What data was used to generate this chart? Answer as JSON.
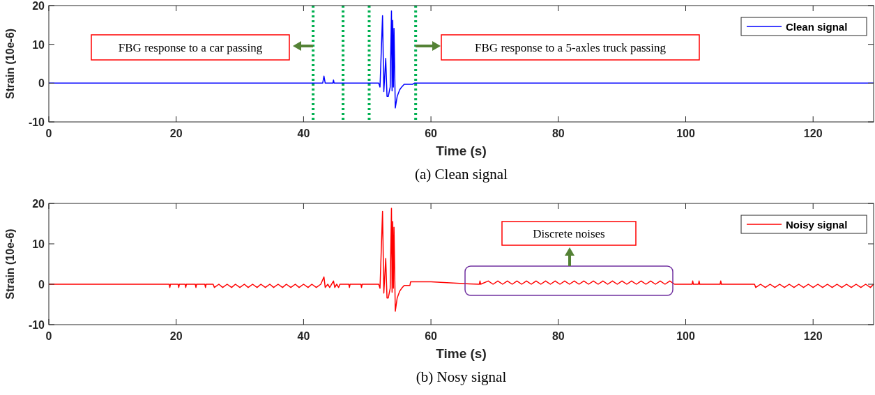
{
  "chart_data": [
    {
      "type": "line",
      "title": "(a) Clean signal",
      "xlabel": "Time (s)",
      "ylabel": "Strain (10e-6)",
      "xlim": [
        0,
        129.5
      ],
      "xticks": [
        0,
        20,
        40,
        60,
        80,
        100,
        120
      ],
      "ylim": [
        -10,
        20
      ],
      "yticks": [
        -10,
        0,
        10,
        20
      ],
      "grid": false,
      "legend": "top right",
      "line_style": "solid",
      "marker": "none",
      "series": [
        {
          "name": "Clean signal",
          "color": "#0000ff",
          "x": [
            0,
            43,
            43.2,
            43.4,
            44.6,
            44.7,
            44.8,
            51.8,
            52,
            52.4,
            52.6,
            52.9,
            53.1,
            53.3,
            53.6,
            53.8,
            53.9,
            54,
            54.1,
            54.2,
            54.4,
            54.7,
            55.1,
            55.4,
            55.8,
            57.1,
            57.4,
            129.5
          ],
          "values": [
            0,
            0,
            1.8,
            0,
            0,
            0.8,
            0,
            0,
            -1,
            17.4,
            -2.2,
            6.4,
            -3.4,
            -3.4,
            -1,
            18.6,
            -2,
            16.2,
            -1,
            14.1,
            -6.4,
            -3.4,
            -1.7,
            -1,
            -0.3,
            -0.3,
            0,
            0
          ]
        }
      ],
      "ref_lines": [
        {
          "axis": "x",
          "value": 41.5,
          "color": "#00b050",
          "line_style": "dotted"
        },
        {
          "axis": "x",
          "value": 46.2,
          "color": "#00b050",
          "line_style": "dotted"
        },
        {
          "axis": "x",
          "value": 50.3,
          "color": "#00b050",
          "line_style": "dotted"
        },
        {
          "axis": "x",
          "value": 57.6,
          "color": "#00b050",
          "line_style": "dotted"
        }
      ],
      "annotations": [
        "FBG response to a car passing",
        "FBG response to a 5-axles truck passing"
      ]
    },
    {
      "type": "line",
      "title": "(b) Nosy signal",
      "xlabel": "Time (s)",
      "ylabel": "Strain (10e-6)",
      "xlim": [
        0,
        129.5
      ],
      "xticks": [
        0,
        20,
        40,
        60,
        80,
        100,
        120
      ],
      "ylim": [
        -10,
        20
      ],
      "yticks": [
        -10,
        0,
        10,
        20
      ],
      "grid": false,
      "legend": "top right",
      "line_style": "solid",
      "marker": "none",
      "series": [
        {
          "name": "Noisy signal",
          "color": "#ff0000",
          "x": [
            0,
            18.9,
            19,
            19.1,
            20.3,
            20.4,
            20.5,
            21.4,
            21.5,
            21.6,
            23,
            23.1,
            23.2,
            24.5,
            24.6,
            24.7,
            25.8,
            26,
            26.7,
            27.3,
            28,
            28.7,
            29.3,
            30,
            30.7,
            31.3,
            32,
            32.7,
            33.3,
            34,
            34.7,
            35.3,
            36,
            36.7,
            37.3,
            38,
            38.7,
            39.3,
            40,
            40.7,
            41.3,
            42,
            42.7,
            43.2,
            43.4,
            43.8,
            44.1,
            44.4,
            44.7,
            44.9,
            45.2,
            45.5,
            45.7,
            47.1,
            47.2,
            47.3,
            49,
            49.1,
            49.2,
            51.8,
            52,
            52.4,
            52.6,
            52.9,
            53.1,
            53.3,
            53.6,
            53.8,
            53.9,
            54,
            54.1,
            54.2,
            54.4,
            54.7,
            55.1,
            55.4,
            55.8,
            56.7,
            56.8,
            60,
            66,
            67.6,
            67.7,
            67.8,
            69,
            69.75,
            70.5,
            71.25,
            72,
            72.75,
            73.5,
            74.25,
            75,
            75.75,
            76.5,
            77.25,
            78,
            78.75,
            79.5,
            80.25,
            81,
            81.75,
            82.5,
            83.25,
            84,
            84.75,
            85.5,
            86.25,
            87,
            87.75,
            88.5,
            89.25,
            90,
            90.75,
            91.5,
            92.25,
            93,
            93.75,
            94.5,
            95.25,
            96,
            96.75,
            97.5,
            98.25,
            99.5,
            101,
            101.1,
            101.2,
            102,
            102.1,
            102.2,
            105.4,
            105.5,
            105.6,
            110.8,
            111,
            111.75,
            112.5,
            113.25,
            114,
            114.75,
            115.5,
            116.25,
            117,
            117.75,
            118.5,
            119.25,
            120,
            120.75,
            121.5,
            122.25,
            123,
            123.75,
            124.5,
            125.25,
            126,
            126.75,
            127.5,
            128.25,
            129,
            129.5
          ],
          "values": [
            0,
            0,
            -0.8,
            0,
            0,
            -0.8,
            0,
            0,
            -0.8,
            0,
            0,
            -0.8,
            0,
            0,
            -0.8,
            0,
            0,
            -0.8,
            0,
            -0.8,
            0,
            -0.8,
            0,
            -0.8,
            0,
            -0.8,
            0,
            -0.8,
            0,
            -0.8,
            0,
            -0.8,
            0,
            -0.8,
            0,
            -0.8,
            0,
            -0.8,
            0,
            -0.8,
            0,
            -0.8,
            0,
            1.8,
            -0.8,
            0,
            -0.8,
            0,
            0.8,
            -0.8,
            0,
            -0.8,
            0,
            0,
            -0.8,
            0,
            0,
            -0.8,
            0,
            0,
            -1,
            18,
            -2.2,
            6.4,
            -3.4,
            -3.4,
            -1,
            18.8,
            -2,
            15.5,
            -1,
            14.1,
            -6.7,
            -3.4,
            -1.7,
            -1,
            -0.3,
            -0.3,
            0.6,
            0.6,
            0.1,
            0,
            0.8,
            0,
            0.8,
            0,
            0.8,
            0,
            0.8,
            0,
            0.8,
            0,
            0.8,
            0,
            0.8,
            0,
            0.8,
            0,
            0.8,
            0,
            0.8,
            0,
            0.8,
            0,
            0.8,
            0,
            0.8,
            0,
            0.8,
            0,
            0.8,
            0,
            0.8,
            0,
            0.8,
            0,
            0.8,
            0,
            0.8,
            0,
            0.8,
            0,
            0.8,
            0,
            0,
            0,
            0.8,
            0,
            0,
            0.8,
            0,
            0,
            0.8,
            0,
            0,
            -0.8,
            0,
            -0.8,
            0,
            -0.8,
            0,
            -0.8,
            0,
            -0.8,
            0,
            -0.8,
            0,
            -0.8,
            0,
            -0.8,
            0,
            -0.8,
            0,
            -0.8,
            0,
            -0.8,
            0,
            -0.8,
            0,
            -0.8,
            0
          ]
        }
      ],
      "annotations": [
        "Discrete noises"
      ]
    }
  ]
}
